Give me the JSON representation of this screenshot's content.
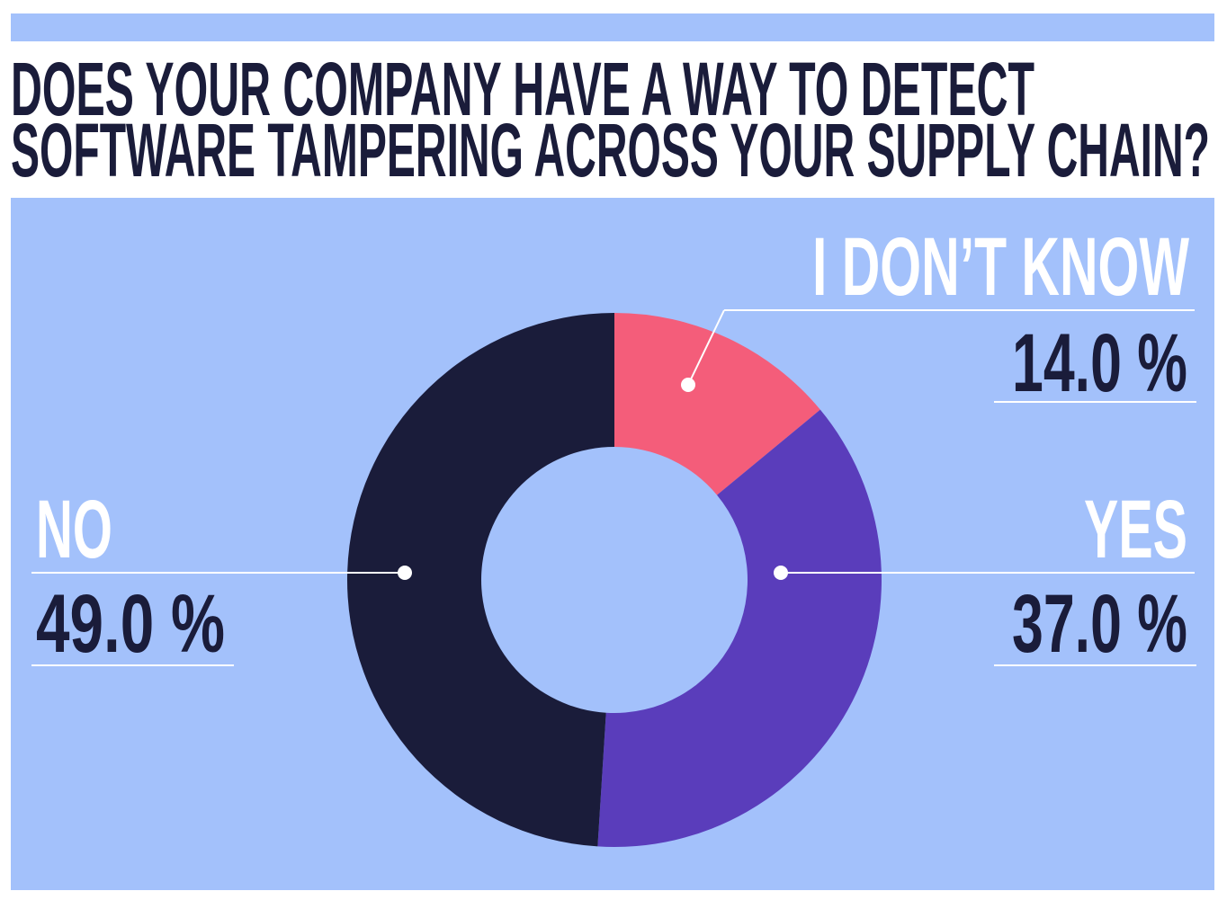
{
  "chart_data": {
    "type": "donut",
    "title": [
      "DOES YOUR COMPANY HAVE A WAY TO DETECT",
      "SOFTWARE TAMPERING ACROSS YOUR SUPPLY CHAIN?"
    ],
    "categories": [
      "I DON’T KNOW",
      "YES",
      "NO"
    ],
    "values": [
      14,
      37,
      49
    ],
    "value_labels": [
      "14.0 %",
      "37.0 %",
      "49.0 %"
    ],
    "colors": [
      "#f45d7a",
      "#5a3dbb",
      "#1a1c3a"
    ]
  }
}
